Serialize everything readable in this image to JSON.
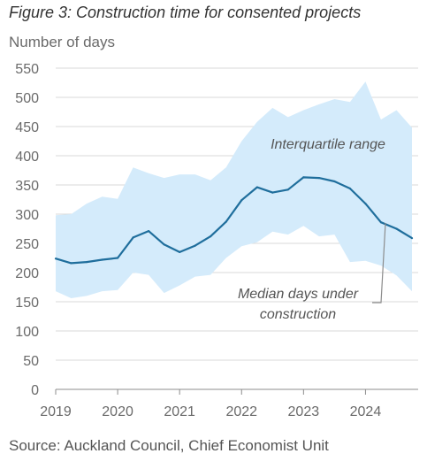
{
  "figure": {
    "title": "Figure 3: Construction time for consented projects",
    "source": "Source: Auckland Council, Chief Economist Unit"
  },
  "chart_data": {
    "type": "line",
    "title": "Figure 3: Construction time for consented projects",
    "xlabel": "",
    "ylabel": "Number of days",
    "ylim": [
      0,
      550
    ],
    "xlim": [
      2019,
      2024.85
    ],
    "y_ticks": [
      0,
      50,
      100,
      150,
      200,
      250,
      300,
      350,
      400,
      450,
      500,
      550
    ],
    "x_ticks": [
      2019,
      2020,
      2021,
      2022,
      2023,
      2024
    ],
    "x_tick_labels": [
      "2019",
      "2020",
      "2021",
      "2022",
      "2023",
      "2024"
    ],
    "grid": "horizontal",
    "colors": {
      "band": "#d4ebfb",
      "line": "#1f6e9c",
      "grid": "#d9d9d9",
      "axis": "#8c8c8c"
    },
    "series": [
      {
        "name": "Median days under construction",
        "kind": "line",
        "x": [
          2019,
          2019.25,
          2019.5,
          2019.75,
          2020,
          2020.25,
          2020.5,
          2020.75,
          2021,
          2021.25,
          2021.5,
          2021.75,
          2022,
          2022.25,
          2022.5,
          2022.75,
          2023,
          2023.25,
          2023.5,
          2023.75,
          2024,
          2024.25,
          2024.5,
          2024.75
        ],
        "values": [
          224,
          216,
          218,
          222,
          225,
          260,
          271,
          248,
          235,
          246,
          262,
          287,
          324,
          346,
          337,
          342,
          363,
          362,
          356,
          344,
          318,
          286,
          275,
          259
        ]
      },
      {
        "name": "Interquartile range",
        "kind": "band",
        "x": [
          2019,
          2019.25,
          2019.5,
          2019.75,
          2020,
          2020.25,
          2020.5,
          2020.75,
          2021,
          2021.25,
          2021.5,
          2021.75,
          2022,
          2022.25,
          2022.5,
          2022.75,
          2023,
          2023.25,
          2023.5,
          2023.75,
          2024,
          2024.25,
          2024.5,
          2024.75
        ],
        "lower": [
          168,
          156,
          160,
          168,
          170,
          200,
          196,
          165,
          178,
          193,
          196,
          225,
          245,
          252,
          270,
          265,
          280,
          262,
          265,
          218,
          220,
          212,
          195,
          168
        ],
        "upper": [
          298,
          300,
          318,
          330,
          326,
          380,
          370,
          362,
          368,
          368,
          358,
          380,
          425,
          458,
          482,
          466,
          478,
          488,
          497,
          492,
          527,
          462,
          478,
          448
        ]
      }
    ],
    "annotations": [
      {
        "text": "Interquartile range"
      },
      {
        "text_lines": [
          "Median days under",
          "construction"
        ]
      }
    ]
  }
}
